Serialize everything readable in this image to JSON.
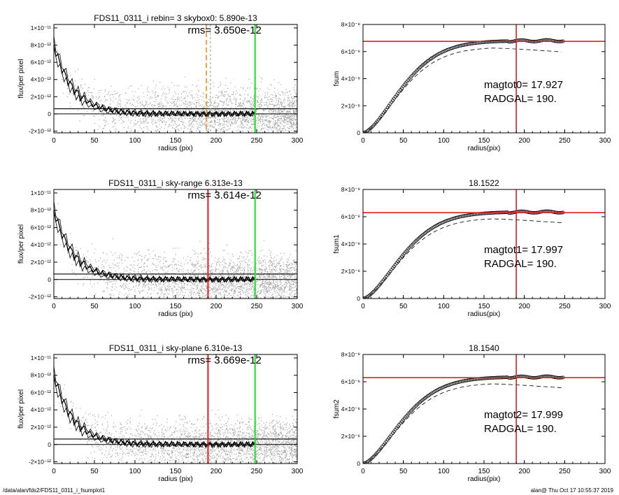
{
  "footer": {
    "left": "/data/alan/fds2/FDS11_0311_i_fsumplot1",
    "right": "alan@  Thu Oct 17 10:55:37 2019"
  },
  "colors": {
    "scatter": "#a8a8a8",
    "profile": "#000000",
    "red_line": "#e0201a",
    "green_line": "#22dd22",
    "orange_line": "#f0a040"
  },
  "chart_data": [
    {
      "type": "scatter",
      "title": "FDS11_0311_i rebin= 3    skybox0:  5.890e-13",
      "annotation": "rms= 3.650e-12",
      "xlabel": "radius (pix)",
      "ylabel": "flux/per pixel",
      "xlim": [
        0,
        300
      ],
      "ylim": [
        -2.2e-12,
        1.04e-11
      ],
      "xticks": [
        "0",
        "50",
        "100",
        "150",
        "200",
        "250",
        "300"
      ],
      "yticks": [
        {
          "v": -2e-12,
          "label": "-2×10⁻¹²"
        },
        {
          "v": 0,
          "label": "0"
        },
        {
          "v": 2e-12,
          "label": "2×10⁻¹²"
        },
        {
          "v": 4e-12,
          "label": "4×10⁻¹²"
        },
        {
          "v": 6e-12,
          "label": "6×10⁻¹²"
        },
        {
          "v": 8e-12,
          "label": "8×10⁻¹²"
        },
        {
          "v": 1e-11,
          "label": "1×10⁻¹¹"
        }
      ],
      "hlines": [
        0,
        6e-13
      ],
      "vlines": [
        {
          "x": 188,
          "color": "orange",
          "style": "dashed"
        },
        {
          "x": 193,
          "color": "gray",
          "style": "dashed"
        },
        {
          "x": 248,
          "color": "green",
          "style": "solid"
        }
      ]
    },
    {
      "type": "line",
      "title": "",
      "xlabel": "radius(pix)",
      "ylabel": "fsum",
      "xlim": [
        0,
        300
      ],
      "ylim": [
        0,
        8e-08
      ],
      "xticks": [
        "0",
        "50",
        "100",
        "150",
        "200",
        "250",
        "300"
      ],
      "yticks": [
        {
          "v": 0,
          "label": "0"
        },
        {
          "v": 2e-08,
          "label": "2×10⁻⁸"
        },
        {
          "v": 4e-08,
          "label": "4×10⁻⁸"
        },
        {
          "v": 6e-08,
          "label": "6×10⁻⁸"
        },
        {
          "v": 8e-08,
          "label": "8×10⁻⁸"
        }
      ],
      "annotation_lines": [
        "magtot0=  17.927",
        "RADGAL=    190."
      ],
      "plateau": 6.8e-08,
      "hline": 6.75e-08,
      "vline": 190
    },
    {
      "type": "scatter",
      "title": "FDS11_0311_i sky-range  6.313e-13",
      "annotation": "rms= 3.614e-12",
      "xlabel": "radius (pix)",
      "ylabel": "flux/per pixel",
      "xlim": [
        0,
        300
      ],
      "ylim": [
        -2.2e-12,
        1.04e-11
      ],
      "xticks": [
        "0",
        "50",
        "100",
        "150",
        "200",
        "250",
        "300"
      ],
      "yticks": [
        {
          "v": -2e-12,
          "label": "-2×10⁻¹²"
        },
        {
          "v": 0,
          "label": "0"
        },
        {
          "v": 2e-12,
          "label": "2×10⁻¹²"
        },
        {
          "v": 4e-12,
          "label": "4×10⁻¹²"
        },
        {
          "v": 6e-12,
          "label": "6×10⁻¹²"
        },
        {
          "v": 8e-12,
          "label": "8×10⁻¹²"
        },
        {
          "v": 1e-11,
          "label": "1×10⁻¹¹"
        }
      ],
      "hlines": [
        0,
        6.3e-13
      ],
      "vlines": [
        {
          "x": 190,
          "color": "red",
          "style": "solid"
        },
        {
          "x": 248,
          "color": "green",
          "style": "solid"
        }
      ]
    },
    {
      "type": "line",
      "title": "18.1522",
      "xlabel": "radius(pix)",
      "ylabel": "fsum1",
      "xlim": [
        0,
        300
      ],
      "ylim": [
        0,
        8e-08
      ],
      "xticks": [
        "0",
        "50",
        "100",
        "150",
        "200",
        "250",
        "300"
      ],
      "yticks": [
        {
          "v": 0,
          "label": "0"
        },
        {
          "v": 2e-08,
          "label": "2×10⁻⁸"
        },
        {
          "v": 4e-08,
          "label": "4×10⁻⁸"
        },
        {
          "v": 6e-08,
          "label": "6×10⁻⁸"
        },
        {
          "v": 8e-08,
          "label": "8×10⁻⁸"
        }
      ],
      "annotation_lines": [
        "magtot1=  17.997",
        "RADGAL=    190."
      ],
      "plateau": 6.35e-08,
      "hline": 6.3e-08,
      "vline": 190
    },
    {
      "type": "scatter",
      "title": "FDS11_0311_i sky-plane  6.310e-13",
      "annotation": "rms= 3.669e-12",
      "xlabel": "radius (pix)",
      "ylabel": "flux/per pixel",
      "xlim": [
        0,
        300
      ],
      "ylim": [
        -2.2e-12,
        1.04e-11
      ],
      "xticks": [
        "0",
        "50",
        "100",
        "150",
        "200",
        "250",
        "300"
      ],
      "yticks": [
        {
          "v": -2e-12,
          "label": "-2×10⁻¹²"
        },
        {
          "v": 0,
          "label": "0"
        },
        {
          "v": 2e-12,
          "label": "2×10⁻¹²"
        },
        {
          "v": 4e-12,
          "label": "4×10⁻¹²"
        },
        {
          "v": 6e-12,
          "label": "6×10⁻¹²"
        },
        {
          "v": 8e-12,
          "label": "8×10⁻¹²"
        },
        {
          "v": 1e-11,
          "label": "1×10⁻¹¹"
        }
      ],
      "hlines": [
        0,
        6.3e-13
      ],
      "vlines": [
        {
          "x": 190,
          "color": "red",
          "style": "solid"
        },
        {
          "x": 248,
          "color": "green",
          "style": "solid"
        }
      ]
    },
    {
      "type": "line",
      "title": "18.1540",
      "xlabel": "radius(pix)",
      "ylabel": "fsum2",
      "xlim": [
        0,
        300
      ],
      "ylim": [
        0,
        8e-08
      ],
      "xticks": [
        "0",
        "50",
        "100",
        "150",
        "200",
        "250",
        "300"
      ],
      "yticks": [
        {
          "v": 0,
          "label": "0"
        },
        {
          "v": 2e-08,
          "label": "2×10⁻⁸"
        },
        {
          "v": 4e-08,
          "label": "4×10⁻⁸"
        },
        {
          "v": 6e-08,
          "label": "6×10⁻⁸"
        },
        {
          "v": 8e-08,
          "label": "8×10⁻⁸"
        }
      ],
      "annotation_lines": [
        "magtot2=  17.999",
        "RADGAL=    190."
      ],
      "plateau": 6.35e-08,
      "hline": 6.3e-08,
      "vline": 190
    }
  ]
}
